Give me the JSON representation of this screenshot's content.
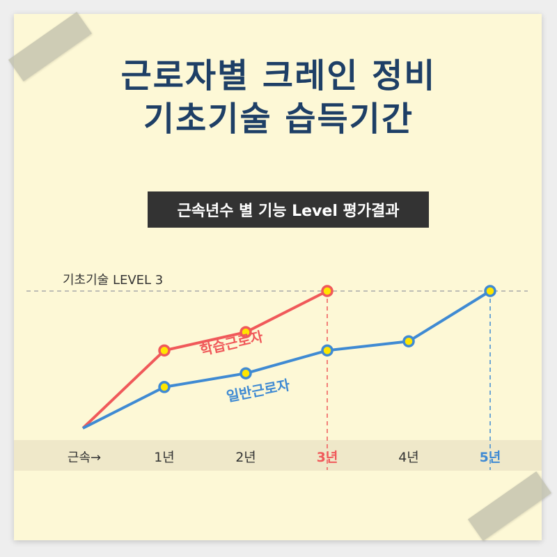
{
  "title": {
    "line1": "근로자별 크레인 정비",
    "line2": "기초기술 습득기간"
  },
  "subtitle": "근속년수 별 기능 Level 평가결과",
  "colors": {
    "paper": "#fdf8d6",
    "band": "#efe8c9",
    "learner": "#f0595a",
    "general": "#3f8ad3",
    "marker_fill": "#ffe600",
    "title": "#1e3f66"
  },
  "chart_data": {
    "type": "line",
    "reference_line": {
      "label": "기초기술 LEVEL 3",
      "level": 3
    },
    "x_axis_label": "근속→",
    "categories": [
      "0",
      "1년",
      "2년",
      "3년",
      "4년",
      "5년"
    ],
    "tick_labels": [
      "1년",
      "2년",
      "3년",
      "4년",
      "5년"
    ],
    "highlight_ticks": {
      "3년": "learner",
      "5년": "general"
    },
    "ylim": [
      0,
      3
    ],
    "series": [
      {
        "key": "learner",
        "name": "학습근로자",
        "x": [
          0,
          1,
          2,
          3
        ],
        "values": [
          0,
          1.7,
          2.1,
          3.0
        ]
      },
      {
        "key": "general",
        "name": "일반근로자",
        "x": [
          0,
          1,
          2,
          3,
          4,
          5
        ],
        "values": [
          0,
          0.9,
          1.2,
          1.7,
          1.9,
          3.0
        ]
      }
    ],
    "grid": false
  }
}
